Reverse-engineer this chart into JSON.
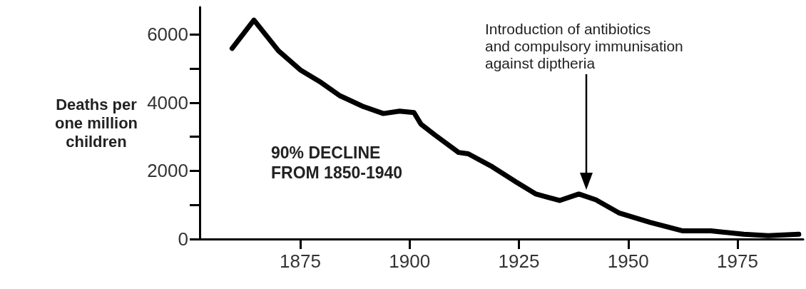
{
  "chart_data": {
    "type": "line",
    "ylabel": "Deaths per\none million\nchildren",
    "x": [
      1859.4,
      1864.4,
      1870,
      1875,
      1879.4,
      1884.1,
      1889.3,
      1894,
      1897.7,
      1901,
      1902.6,
      1905.7,
      1911.2,
      1913.4,
      1918.9,
      1924.4,
      1928.9,
      1934.3,
      1938.7,
      1942.6,
      1948,
      1955,
      1962.5,
      1968.9,
      1976.4,
      1982,
      1989
    ],
    "series": [
      {
        "color": "#000000",
        "values": [
          5590,
          6420,
          5520,
          4960,
          4620,
          4200,
          3890,
          3680,
          3750,
          3710,
          3370,
          3060,
          2540,
          2500,
          2120,
          1670,
          1320,
          1130,
          1320,
          1150,
          760,
          490,
          240,
          240,
          140,
          100,
          140
        ]
      }
    ],
    "xlim": [
      1852,
      1990
    ],
    "xticks": [
      1875,
      1900,
      1925,
      1950,
      1975
    ],
    "ylim": [
      0,
      6800
    ],
    "yticks": [
      0,
      {
        "value": 1000,
        "label": null
      },
      2000,
      {
        "value": 3000,
        "label": null
      },
      4000,
      {
        "value": 5000,
        "label": null
      },
      6000
    ],
    "annotations": [
      "90% DECLINE\nFROM 1850-1940",
      "Introduction of antibiotics\nand compulsory immunisation\nagainst diptheria"
    ]
  }
}
